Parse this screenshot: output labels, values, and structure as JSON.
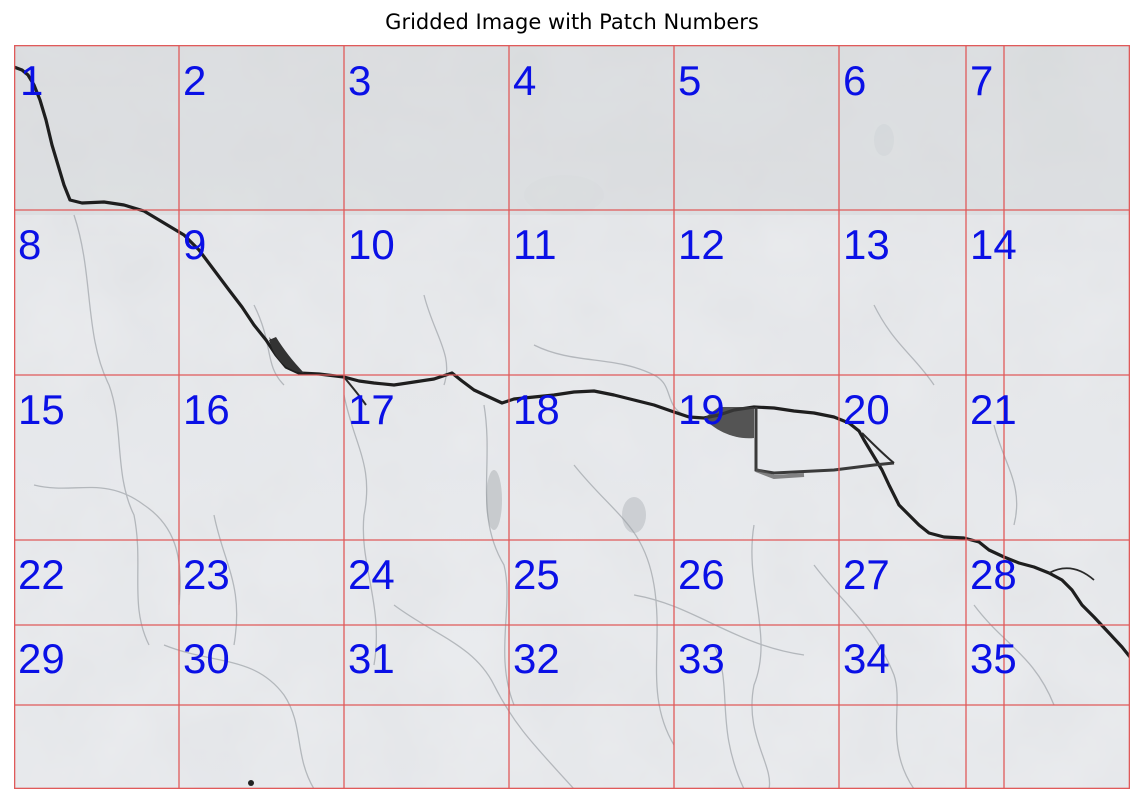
{
  "title": "Gridded Image with Patch Numbers",
  "colors": {
    "grid": "#e05a5a",
    "label": "#0a10e6",
    "crack": "#1e1e1e",
    "wall": "#dfe2e6"
  },
  "patches": [
    "1",
    "2",
    "3",
    "4",
    "5",
    "6",
    "7",
    "8",
    "9",
    "10",
    "11",
    "12",
    "13",
    "14",
    "15",
    "16",
    "17",
    "18",
    "19",
    "20",
    "21",
    "22",
    "23",
    "24",
    "25",
    "26",
    "27",
    "28",
    "29",
    "30",
    "31",
    "32",
    "33",
    "34",
    "35"
  ]
}
